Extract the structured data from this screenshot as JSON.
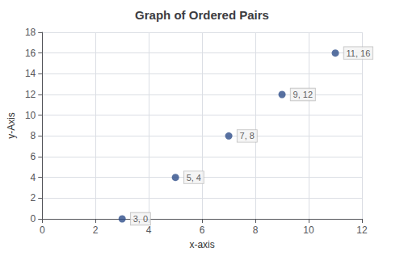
{
  "chart_data": {
    "type": "scatter",
    "title": "Graph of Ordered Pairs",
    "xlabel": "x-axis",
    "ylabel": "y-Axis",
    "x": [
      3,
      5,
      7,
      9,
      11
    ],
    "values": [
      0,
      4,
      8,
      12,
      16
    ],
    "annotations": [
      "3, 0",
      "5, 4",
      "7, 8",
      "9, 12",
      "11, 16"
    ],
    "color": "#2e4d8a",
    "xlim": [
      0,
      12
    ],
    "ylim": [
      0,
      18
    ],
    "xticks": [
      0,
      2,
      4,
      6,
      8,
      10,
      12
    ],
    "yticks": [
      0,
      2,
      4,
      6,
      8,
      10,
      12,
      14,
      16,
      18
    ],
    "grid": true
  }
}
